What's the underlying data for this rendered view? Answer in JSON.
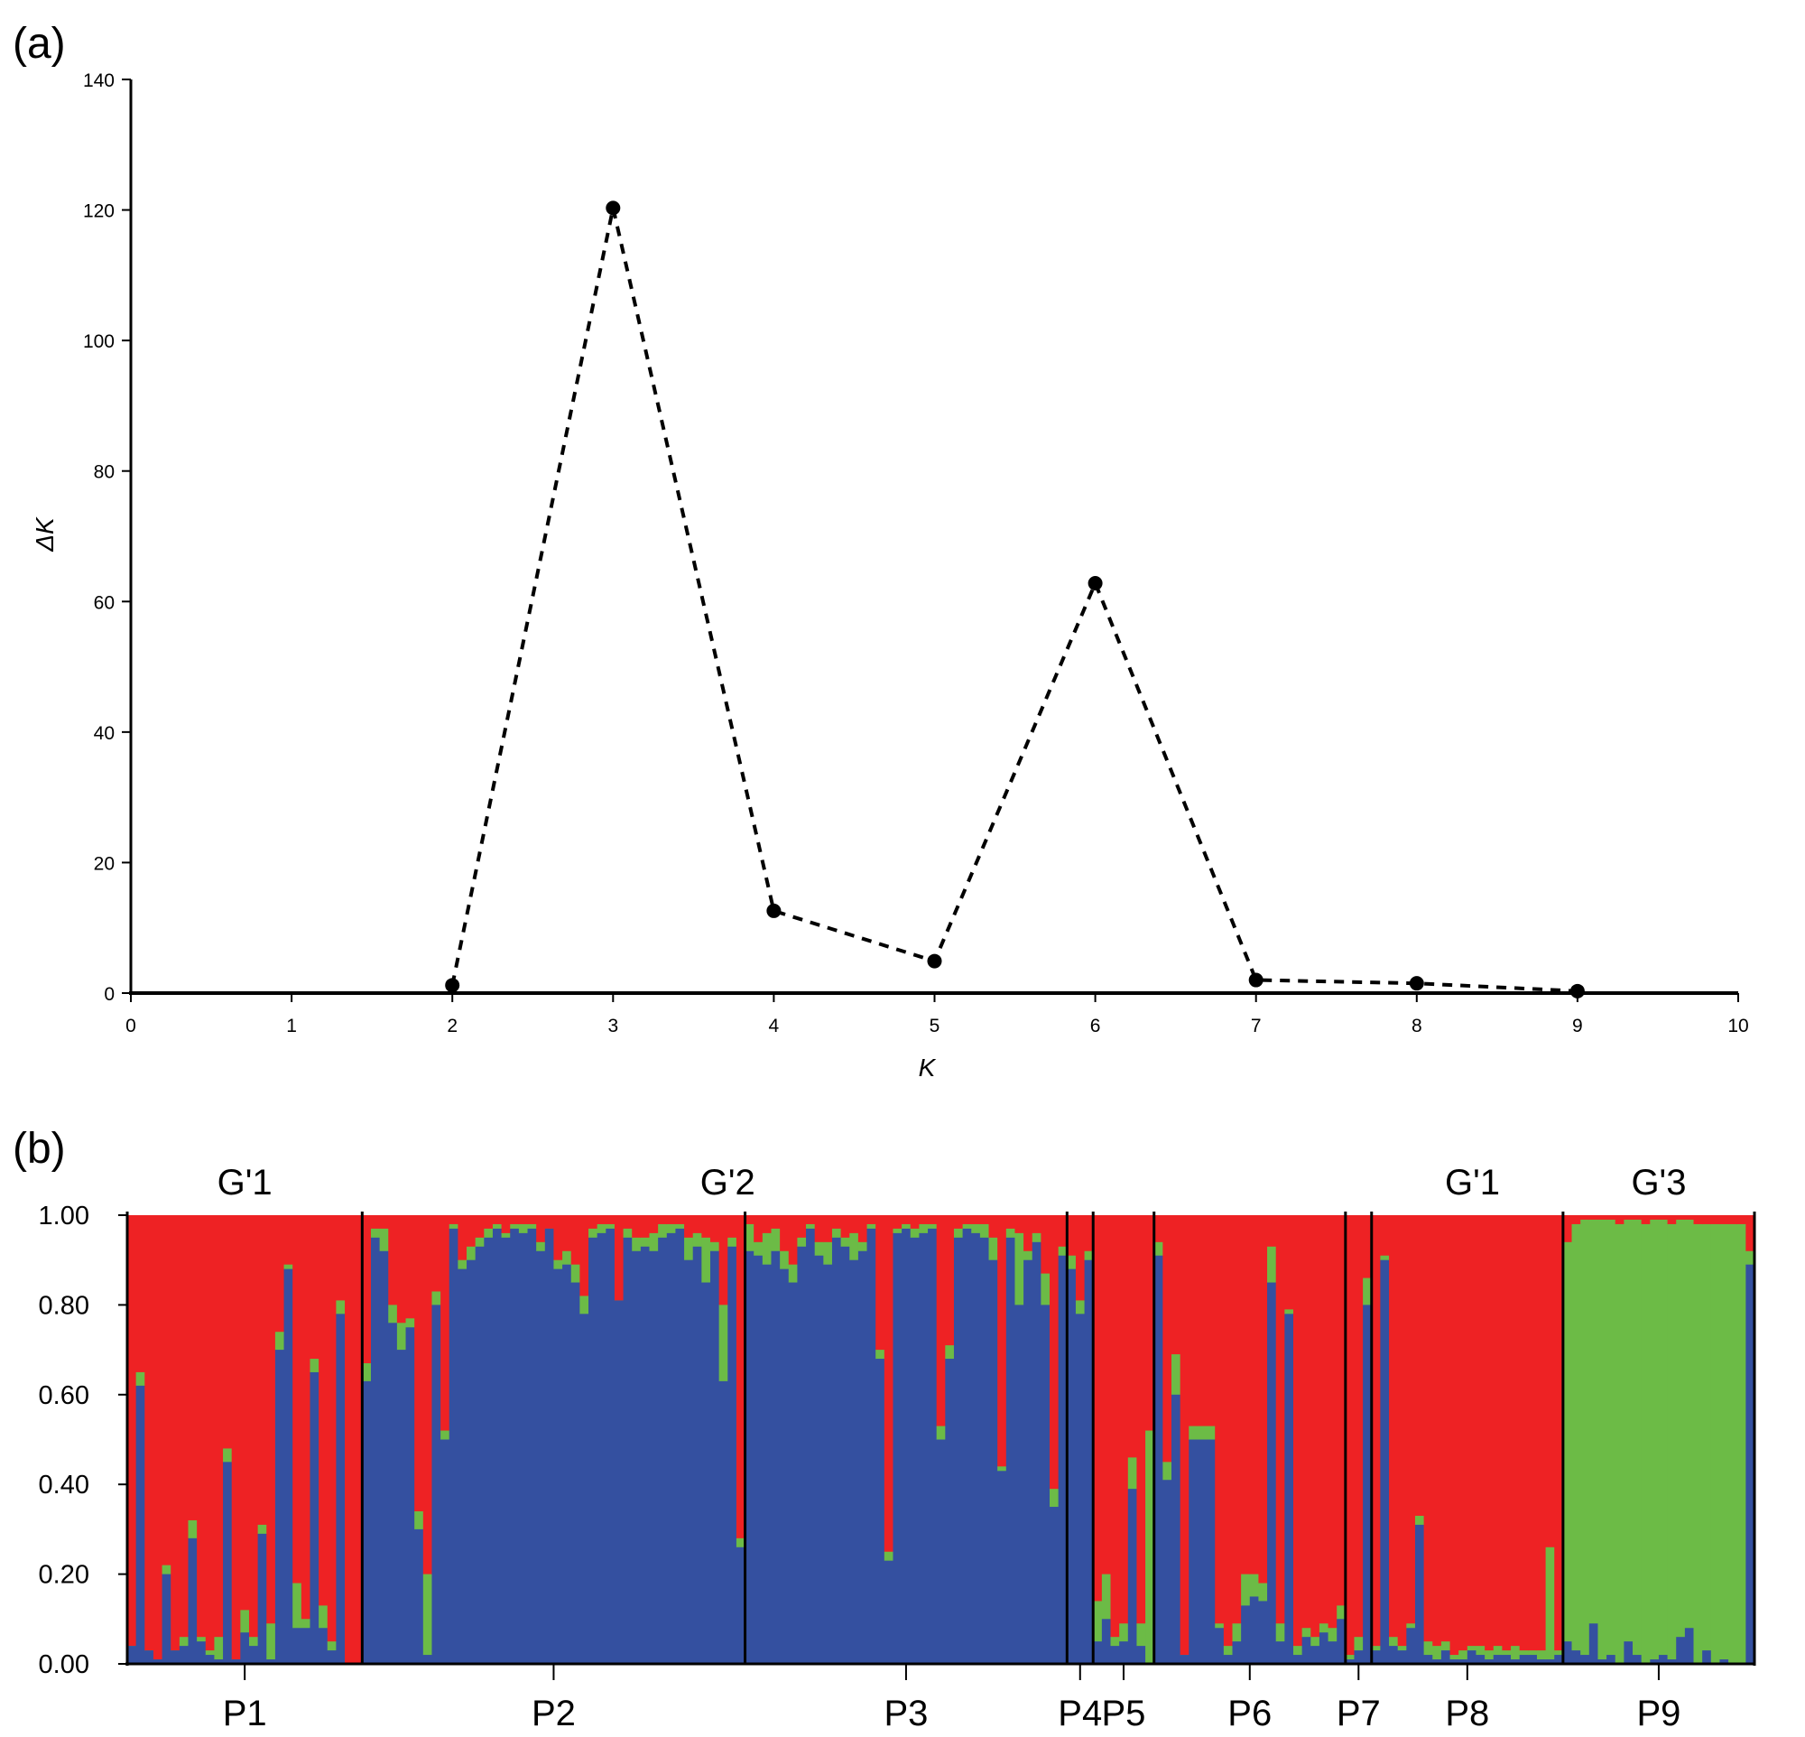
{
  "chart_data": [
    {
      "panel": "(a)",
      "type": "line",
      "xlabel": "K",
      "ylabel": "ΔK",
      "xlim": [
        0,
        10
      ],
      "ylim": [
        0,
        140
      ],
      "xticks": [
        0,
        1,
        2,
        3,
        4,
        5,
        6,
        7,
        8,
        9,
        10
      ],
      "yticks": [
        0,
        20,
        40,
        60,
        80,
        100,
        120,
        140
      ],
      "line_style": "dashed",
      "marker": "filled-circle",
      "grid": false,
      "x": [
        2,
        3,
        4,
        5,
        6,
        7,
        8,
        9
      ],
      "y": [
        1.2,
        120.3,
        12.6,
        4.9,
        62.8,
        2.0,
        1.5,
        0.3
      ]
    },
    {
      "panel": "(b)",
      "type": "bar",
      "stacked": true,
      "ylim": [
        0,
        1
      ],
      "yticks": [
        "0.00",
        "0.20",
        "0.40",
        "0.60",
        "0.80",
        "1.00"
      ],
      "series": [
        {
          "color": "#3450a0"
        },
        {
          "color": "#6cbb46"
        },
        {
          "color": "#ee2224"
        }
      ],
      "populations": [
        {
          "label": "P1",
          "n": 27,
          "blue": [
            0.04,
            0.62,
            0.03,
            0.01,
            0.2,
            0.03,
            0.04,
            0.28,
            0.05,
            0.02,
            0.01,
            0.45,
            0.01,
            0.07,
            0.04,
            0.29,
            0.01,
            0.7,
            0.88,
            0.08,
            0.08,
            0.65,
            0.08,
            0.03,
            0.78,
            0.0,
            0.0
          ],
          "green": [
            0.0,
            0.03,
            0.0,
            0.0,
            0.02,
            0.0,
            0.02,
            0.04,
            0.01,
            0.01,
            0.05,
            0.03,
            0.0,
            0.05,
            0.02,
            0.02,
            0.08,
            0.04,
            0.01,
            0.1,
            0.02,
            0.03,
            0.05,
            0.02,
            0.03,
            0.0,
            0.0
          ]
        },
        {
          "label": "P2",
          "n": 44,
          "blue": [
            0.63,
            0.95,
            0.92,
            0.76,
            0.7,
            0.75,
            0.3,
            0.02,
            0.8,
            0.5,
            0.97,
            0.88,
            0.9,
            0.93,
            0.95,
            0.97,
            0.95,
            0.97,
            0.96,
            0.97,
            0.92,
            0.97,
            0.88,
            0.89,
            0.85,
            0.78,
            0.95,
            0.96,
            0.97,
            0.81,
            0.95,
            0.92,
            0.93,
            0.92,
            0.95,
            0.96,
            0.97,
            0.9,
            0.93,
            0.85,
            0.92,
            0.63,
            0.93,
            0.26
          ],
          "green": [
            0.04,
            0.02,
            0.05,
            0.04,
            0.06,
            0.02,
            0.04,
            0.18,
            0.03,
            0.02,
            0.01,
            0.02,
            0.03,
            0.02,
            0.02,
            0.01,
            0.01,
            0.01,
            0.02,
            0.01,
            0.02,
            0.0,
            0.02,
            0.03,
            0.04,
            0.04,
            0.02,
            0.02,
            0.01,
            0.0,
            0.02,
            0.03,
            0.02,
            0.04,
            0.03,
            0.02,
            0.01,
            0.05,
            0.03,
            0.1,
            0.02,
            0.17,
            0.02,
            0.02
          ]
        },
        {
          "label": "P3",
          "n": 37,
          "blue": [
            0.92,
            0.91,
            0.89,
            0.92,
            0.88,
            0.85,
            0.93,
            0.97,
            0.91,
            0.89,
            0.95,
            0.93,
            0.9,
            0.92,
            0.97,
            0.68,
            0.23,
            0.96,
            0.97,
            0.95,
            0.96,
            0.97,
            0.5,
            0.68,
            0.95,
            0.97,
            0.96,
            0.95,
            0.9,
            0.43,
            0.95,
            0.8,
            0.9,
            0.94,
            0.8,
            0.35,
            0.91
          ],
          "green": [
            0.06,
            0.03,
            0.07,
            0.05,
            0.04,
            0.04,
            0.02,
            0.01,
            0.03,
            0.05,
            0.02,
            0.02,
            0.06,
            0.02,
            0.01,
            0.02,
            0.02,
            0.01,
            0.01,
            0.02,
            0.02,
            0.01,
            0.03,
            0.03,
            0.02,
            0.01,
            0.02,
            0.03,
            0.05,
            0.01,
            0.02,
            0.16,
            0.02,
            0.02,
            0.07,
            0.04,
            0.02
          ]
        },
        {
          "label": "P4",
          "n": 3,
          "blue": [
            0.88,
            0.78,
            0.9
          ],
          "green": [
            0.03,
            0.03,
            0.02
          ]
        },
        {
          "label": "P5",
          "n": 7,
          "blue": [
            0.05,
            0.1,
            0.04,
            0.05,
            0.39,
            0.04,
            0.0
          ],
          "green": [
            0.09,
            0.1,
            0.02,
            0.04,
            0.07,
            0.05,
            0.52
          ]
        },
        {
          "label": "P6",
          "n": 22,
          "blue": [
            0.91,
            0.41,
            0.6,
            0.02,
            0.5,
            0.5,
            0.5,
            0.08,
            0.02,
            0.05,
            0.13,
            0.15,
            0.14,
            0.85,
            0.05,
            0.78,
            0.02,
            0.06,
            0.04,
            0.07,
            0.05,
            0.1
          ],
          "green": [
            0.03,
            0.04,
            0.09,
            0.0,
            0.03,
            0.03,
            0.03,
            0.01,
            0.02,
            0.04,
            0.07,
            0.05,
            0.04,
            0.08,
            0.04,
            0.01,
            0.02,
            0.02,
            0.02,
            0.02,
            0.03,
            0.03
          ]
        },
        {
          "label": "P7",
          "n": 3,
          "blue": [
            0.01,
            0.03,
            0.8
          ],
          "green": [
            0.01,
            0.03,
            0.06
          ]
        },
        {
          "label": "P8",
          "n": 22,
          "blue": [
            0.03,
            0.9,
            0.04,
            0.03,
            0.08,
            0.31,
            0.02,
            0.01,
            0.03,
            0.01,
            0.01,
            0.03,
            0.02,
            0.01,
            0.02,
            0.02,
            0.01,
            0.02,
            0.02,
            0.01,
            0.01,
            0.02
          ],
          "green": [
            0.01,
            0.01,
            0.02,
            0.01,
            0.01,
            0.02,
            0.03,
            0.03,
            0.02,
            0.01,
            0.02,
            0.01,
            0.02,
            0.02,
            0.02,
            0.01,
            0.03,
            0.01,
            0.01,
            0.02,
            0.25,
            0.01
          ]
        },
        {
          "label": "P9",
          "n": 22,
          "blue": [
            0.05,
            0.03,
            0.02,
            0.09,
            0.01,
            0.02,
            0.0,
            0.05,
            0.02,
            0.0,
            0.01,
            0.02,
            0.01,
            0.06,
            0.08,
            0.0,
            0.03,
            0.0,
            0.01,
            0.0,
            0.0,
            0.89
          ],
          "green": [
            0.89,
            0.95,
            0.97,
            0.9,
            0.98,
            0.97,
            0.98,
            0.94,
            0.97,
            0.98,
            0.98,
            0.97,
            0.97,
            0.93,
            0.91,
            0.98,
            0.95,
            0.98,
            0.97,
            0.98,
            0.98,
            0.03
          ]
        }
      ],
      "group_labels": [
        "G'1",
        "G'2",
        "G'1",
        "G'3"
      ]
    }
  ]
}
